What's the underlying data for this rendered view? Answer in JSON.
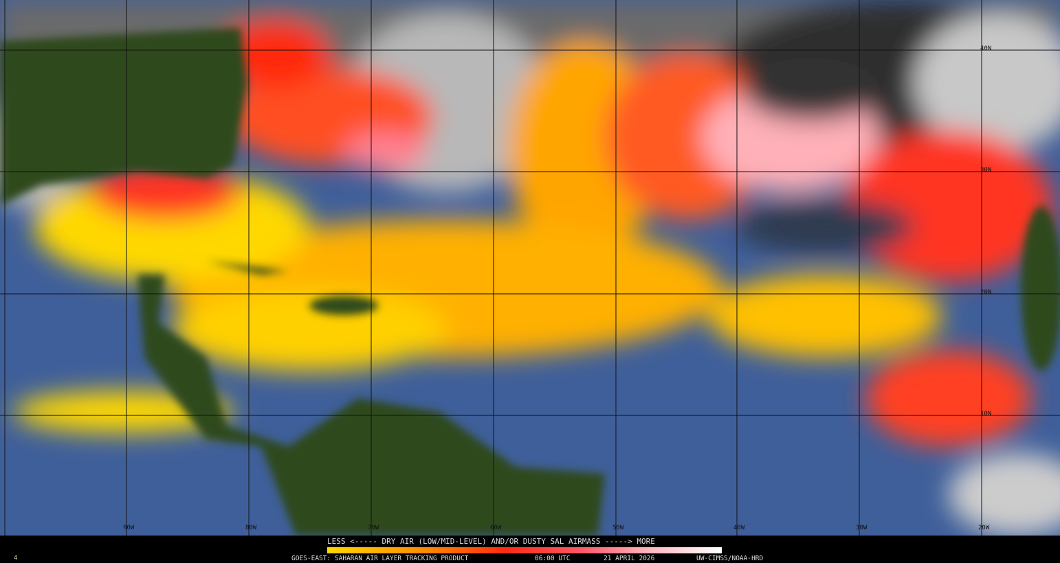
{
  "legend": {
    "scale_label": "LESS <----- DRY AIR (LOW/MID-LEVEL) AND/OR DUSTY SAL AIRMASS -----> MORE",
    "colors": [
      "#ffd800",
      "#ff8a00",
      "#ff2a10",
      "#ff5a6a",
      "#ffb8c0",
      "#ffffff"
    ]
  },
  "footer": {
    "product": "GOES-EAST: SAHARAN AIR LAYER TRACKING PRODUCT",
    "time": "06:00 UTC",
    "date": "21 APRIL 2026",
    "credit": "UW-CIMSS/NOAA-HRD",
    "corner": "4"
  },
  "grid": {
    "longitudes": [
      "90W",
      "80W",
      "70W",
      "60W",
      "50W",
      "40W",
      "30W",
      "20W"
    ],
    "latitudes": [
      "40N",
      "30N",
      "20N",
      "10N"
    ]
  }
}
